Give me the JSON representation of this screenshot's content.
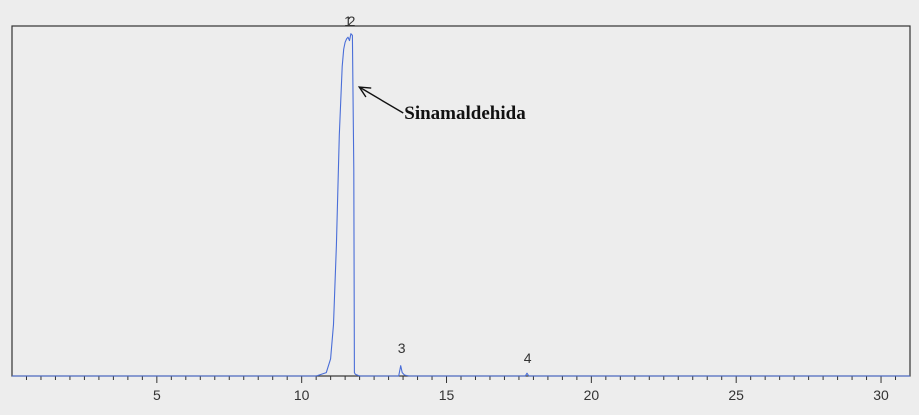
{
  "chart_data": {
    "type": "line",
    "title": "",
    "xlabel": "",
    "ylabel": "",
    "xlim": [
      0,
      31
    ],
    "ylim": [
      0,
      100
    ],
    "grid": false,
    "x_tick_labels": [
      5,
      10,
      15,
      20,
      25,
      30
    ],
    "x_minor_tick_step": 0.5,
    "series": [
      {
        "color": "#4a6ed8",
        "x": [
          0,
          10.5,
          10.85,
          11.0,
          11.1,
          11.2,
          11.3,
          11.4,
          11.45,
          11.5,
          11.55,
          11.6,
          11.65,
          11.7,
          11.75,
          11.8,
          11.82,
          11.85,
          12.0,
          13.35,
          13.42,
          13.47,
          13.55,
          13.7,
          17.72,
          17.78,
          17.84,
          31
        ],
        "y": [
          0,
          0,
          1,
          5,
          15,
          38,
          70,
          90,
          95,
          97,
          98,
          98.5,
          97.5,
          99.5,
          99,
          60,
          1,
          0.5,
          0,
          0,
          3,
          1,
          0.3,
          0,
          0,
          0.8,
          0,
          0
        ]
      }
    ],
    "peak_labels": [
      {
        "label": "1",
        "x": 11.6,
        "y": 100
      },
      {
        "label": "2",
        "x": 11.72,
        "y": 100
      },
      {
        "label": "3",
        "x": 13.45,
        "y": 5
      },
      {
        "label": "4",
        "x": 17.8,
        "y": 2
      }
    ],
    "annotation": {
      "text": "Sinamaldehida",
      "target_x": 11.85,
      "target_y": 84
    },
    "colors": {
      "background": "#ededed",
      "axis": "#333333",
      "trace": "#4a6ed8",
      "labels": "#333333",
      "annotation": "#111111"
    }
  }
}
